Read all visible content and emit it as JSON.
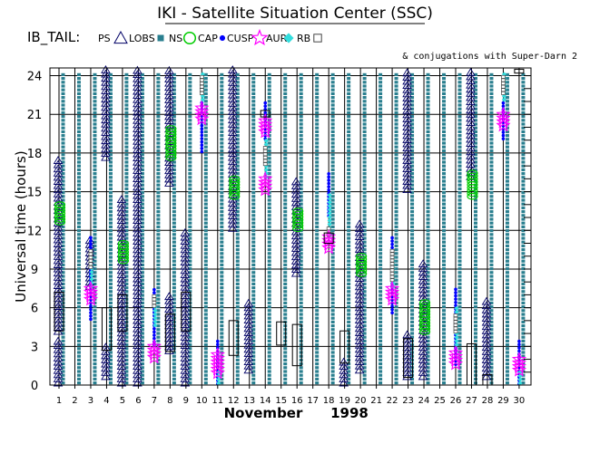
{
  "header": {
    "title": "IKI - Satellite Situation Center (SSC)",
    "series_label": "IB_TAIL:",
    "conjugation_note": "& conjugations with Super-Darn 2"
  },
  "legend": [
    {
      "label": "PS",
      "symbol": "triangle",
      "color": "#000066"
    },
    {
      "label": "LOBS",
      "symbol": "square",
      "color": "#2a7f8f"
    },
    {
      "label": "NS",
      "symbol": "circle",
      "color": "#00cc00"
    },
    {
      "label": "CAP",
      "symbol": "dot",
      "color": "#0000ff"
    },
    {
      "label": "CUSP",
      "symbol": "star",
      "color": "#ff00ff"
    },
    {
      "label": "AUR",
      "symbol": "diamond",
      "color": "#33dddd"
    },
    {
      "label": "RB",
      "symbol": "open-square",
      "color": "#444444"
    }
  ],
  "chart_data": {
    "type": "timeline",
    "xlabel_month": "November",
    "xlabel_year": "1998",
    "ylabel": "Universal time (hours)",
    "ylim": [
      0,
      24
    ],
    "y_ticks": [
      0,
      3,
      6,
      9,
      12,
      15,
      18,
      21,
      24
    ],
    "days": [
      1,
      2,
      3,
      4,
      5,
      6,
      7,
      8,
      9,
      10,
      11,
      12,
      13,
      14,
      15,
      16,
      17,
      18,
      19,
      20,
      21,
      22,
      23,
      24,
      25,
      26,
      27,
      28,
      29,
      30
    ],
    "colors": {
      "PS": "#000066",
      "LOBS": "#2a7f8f",
      "NS": "#00cc00",
      "CAP": "#0000ff",
      "CUSP": "#ff00ff",
      "AUR": "#33dddd",
      "RB": "#444444",
      "conj": "#000000",
      "grid": "#000000"
    },
    "ps_segments": [
      {
        "day": 1,
        "start": 0,
        "end": 3.5
      },
      {
        "day": 1,
        "start": 4,
        "end": 17.5
      },
      {
        "day": 3,
        "start": 7.5,
        "end": 11.5
      },
      {
        "day": 4,
        "start": 17.5,
        "end": 24.5
      },
      {
        "day": 4,
        "start": 0.5,
        "end": 3
      },
      {
        "day": 5,
        "start": 0,
        "end": 14.5
      },
      {
        "day": 6,
        "start": 0,
        "end": 24.5
      },
      {
        "day": 8,
        "start": 15.5,
        "end": 24.5
      },
      {
        "day": 8,
        "start": 2.5,
        "end": 7
      },
      {
        "day": 9,
        "start": 0,
        "end": 12
      },
      {
        "day": 12,
        "start": 12,
        "end": 24.5
      },
      {
        "day": 13,
        "start": 1,
        "end": 6.5
      },
      {
        "day": 16,
        "start": 8.5,
        "end": 16
      },
      {
        "day": 19,
        "start": 0,
        "end": 2
      },
      {
        "day": 20,
        "start": 1,
        "end": 12.5
      },
      {
        "day": 23,
        "start": 15,
        "end": 24.5
      },
      {
        "day": 23,
        "start": 0.5,
        "end": 4
      },
      {
        "day": 24,
        "start": 0.5,
        "end": 9.5
      },
      {
        "day": 27,
        "start": 16,
        "end": 24.5
      },
      {
        "day": 28,
        "start": 0.5,
        "end": 6.5
      }
    ],
    "lobs_segments": [
      {
        "day": 1,
        "start": 0,
        "end": 24.3
      },
      {
        "day": 2,
        "start": 0,
        "end": 24.3
      },
      {
        "day": 3,
        "start": 0,
        "end": 24.3
      },
      {
        "day": 4,
        "start": 0,
        "end": 24.3
      },
      {
        "day": 5,
        "start": 0,
        "end": 24.3
      },
      {
        "day": 6,
        "start": 0,
        "end": 24.3
      },
      {
        "day": 7,
        "start": 0,
        "end": 24.3
      },
      {
        "day": 8,
        "start": 0,
        "end": 24.3
      },
      {
        "day": 9,
        "start": 0,
        "end": 24.3
      },
      {
        "day": 10,
        "start": 0,
        "end": 24.3
      },
      {
        "day": 11,
        "start": 0,
        "end": 24.3
      },
      {
        "day": 12,
        "start": 0,
        "end": 24.3
      },
      {
        "day": 13,
        "start": 0,
        "end": 24.3
      },
      {
        "day": 14,
        "start": 0,
        "end": 24.3
      },
      {
        "day": 15,
        "start": 0,
        "end": 24.3
      },
      {
        "day": 16,
        "start": 0,
        "end": 24.3
      },
      {
        "day": 17,
        "start": 0,
        "end": 24.3
      },
      {
        "day": 18,
        "start": 0,
        "end": 24.3
      },
      {
        "day": 19,
        "start": 0,
        "end": 24.3
      },
      {
        "day": 20,
        "start": 0,
        "end": 24.3
      },
      {
        "day": 21,
        "start": 0,
        "end": 24.3
      },
      {
        "day": 22,
        "start": 0,
        "end": 24.3
      },
      {
        "day": 23,
        "start": 0,
        "end": 24.3
      },
      {
        "day": 24,
        "start": 0,
        "end": 24.3
      },
      {
        "day": 25,
        "start": 0,
        "end": 24.3
      },
      {
        "day": 26,
        "start": 0,
        "end": 24.3
      },
      {
        "day": 27,
        "start": 0,
        "end": 24.3
      },
      {
        "day": 28,
        "start": 0,
        "end": 24.3
      },
      {
        "day": 29,
        "start": 0,
        "end": 24.3
      },
      {
        "day": 30,
        "start": 0,
        "end": 24.3
      }
    ],
    "ns_segments": [
      {
        "day": 1,
        "start": 12.5,
        "end": 14
      },
      {
        "day": 5,
        "start": 9.5,
        "end": 11
      },
      {
        "day": 8,
        "start": 17.5,
        "end": 20
      },
      {
        "day": 12,
        "start": 14.5,
        "end": 16
      },
      {
        "day": 16,
        "start": 12,
        "end": 13.5
      },
      {
        "day": 20,
        "start": 8.5,
        "end": 10
      },
      {
        "day": 24,
        "start": 4,
        "end": 6.5
      },
      {
        "day": 27,
        "start": 14.5,
        "end": 16.5
      }
    ],
    "cap_segments": [
      {
        "day": 3,
        "start": 5,
        "end": 11.5
      },
      {
        "day": 7,
        "start": 3,
        "end": 7.5
      },
      {
        "day": 10,
        "start": 18,
        "end": 22
      },
      {
        "day": 11,
        "start": 0,
        "end": 3.5
      },
      {
        "day": 14,
        "start": 19,
        "end": 22
      },
      {
        "day": 18,
        "start": 13,
        "end": 16.5
      },
      {
        "day": 22,
        "start": 5.5,
        "end": 11.5
      },
      {
        "day": 26,
        "start": 1.5,
        "end": 7.5
      },
      {
        "day": 29,
        "start": 19,
        "end": 22
      },
      {
        "day": 30,
        "start": 0,
        "end": 3.5
      }
    ],
    "cusp_segments": [
      {
        "day": 3,
        "start": 6.5,
        "end": 7.5
      },
      {
        "day": 7,
        "start": 2,
        "end": 3
      },
      {
        "day": 10,
        "start": 20.5,
        "end": 21.5
      },
      {
        "day": 11,
        "start": 0.8,
        "end": 2.5
      },
      {
        "day": 14,
        "start": 19.5,
        "end": 20.5
      },
      {
        "day": 14,
        "start": 15,
        "end": 16
      },
      {
        "day": 18,
        "start": 10.5,
        "end": 11.5
      },
      {
        "day": 22,
        "start": 6.5,
        "end": 7.5
      },
      {
        "day": 26,
        "start": 1.5,
        "end": 2.5
      },
      {
        "day": 29,
        "start": 20,
        "end": 21
      },
      {
        "day": 30,
        "start": 1,
        "end": 2
      }
    ],
    "aur_segments": [
      {
        "day": 3,
        "start": 7.5,
        "end": 10
      },
      {
        "day": 7,
        "start": 4.5,
        "end": 7
      },
      {
        "day": 10,
        "start": 22,
        "end": 24.3
      },
      {
        "day": 11,
        "start": 0,
        "end": 1
      },
      {
        "day": 14,
        "start": 16,
        "end": 19
      },
      {
        "day": 18,
        "start": 11.5,
        "end": 15
      },
      {
        "day": 22,
        "start": 7.5,
        "end": 10
      },
      {
        "day": 26,
        "start": 3,
        "end": 6
      },
      {
        "day": 29,
        "start": 22,
        "end": 24.3
      },
      {
        "day": 30,
        "start": 0,
        "end": 1
      }
    ],
    "rb_segments": [
      {
        "day": 3,
        "start": 9,
        "end": 10.5
      },
      {
        "day": 7,
        "start": 6,
        "end": 7
      },
      {
        "day": 10,
        "start": 22.5,
        "end": 24
      },
      {
        "day": 14,
        "start": 17,
        "end": 18.5
      },
      {
        "day": 18,
        "start": 11.5,
        "end": 12.2
      },
      {
        "day": 22,
        "start": 8,
        "end": 10.5
      },
      {
        "day": 26,
        "start": 4,
        "end": 5.5
      },
      {
        "day": 29,
        "start": 22.5,
        "end": 24
      }
    ],
    "conjugations": [
      {
        "day": 1,
        "start": 4.2,
        "end": 7.2
      },
      {
        "day": 4,
        "start": 2.7,
        "end": 6
      },
      {
        "day": 5,
        "start": 4.2,
        "end": 7
      },
      {
        "day": 8,
        "start": 2.6,
        "end": 5.5
      },
      {
        "day": 9,
        "start": 4.2,
        "end": 7.2
      },
      {
        "day": 12,
        "start": 2.3,
        "end": 5
      },
      {
        "day": 14,
        "start": 20.8,
        "end": 21.3
      },
      {
        "day": 15,
        "start": 3.1,
        "end": 4.9
      },
      {
        "day": 16,
        "start": 1.5,
        "end": 4.7
      },
      {
        "day": 18,
        "start": 11,
        "end": 11.8
      },
      {
        "day": 19,
        "start": 1.7,
        "end": 4.2
      },
      {
        "day": 23,
        "start": 0.6,
        "end": 3.6
      },
      {
        "day": 27,
        "start": 0,
        "end": 3.2
      },
      {
        "day": 28,
        "start": 0,
        "end": 0.8
      },
      {
        "day": 30,
        "start": 24.2,
        "end": 24.5
      }
    ]
  }
}
